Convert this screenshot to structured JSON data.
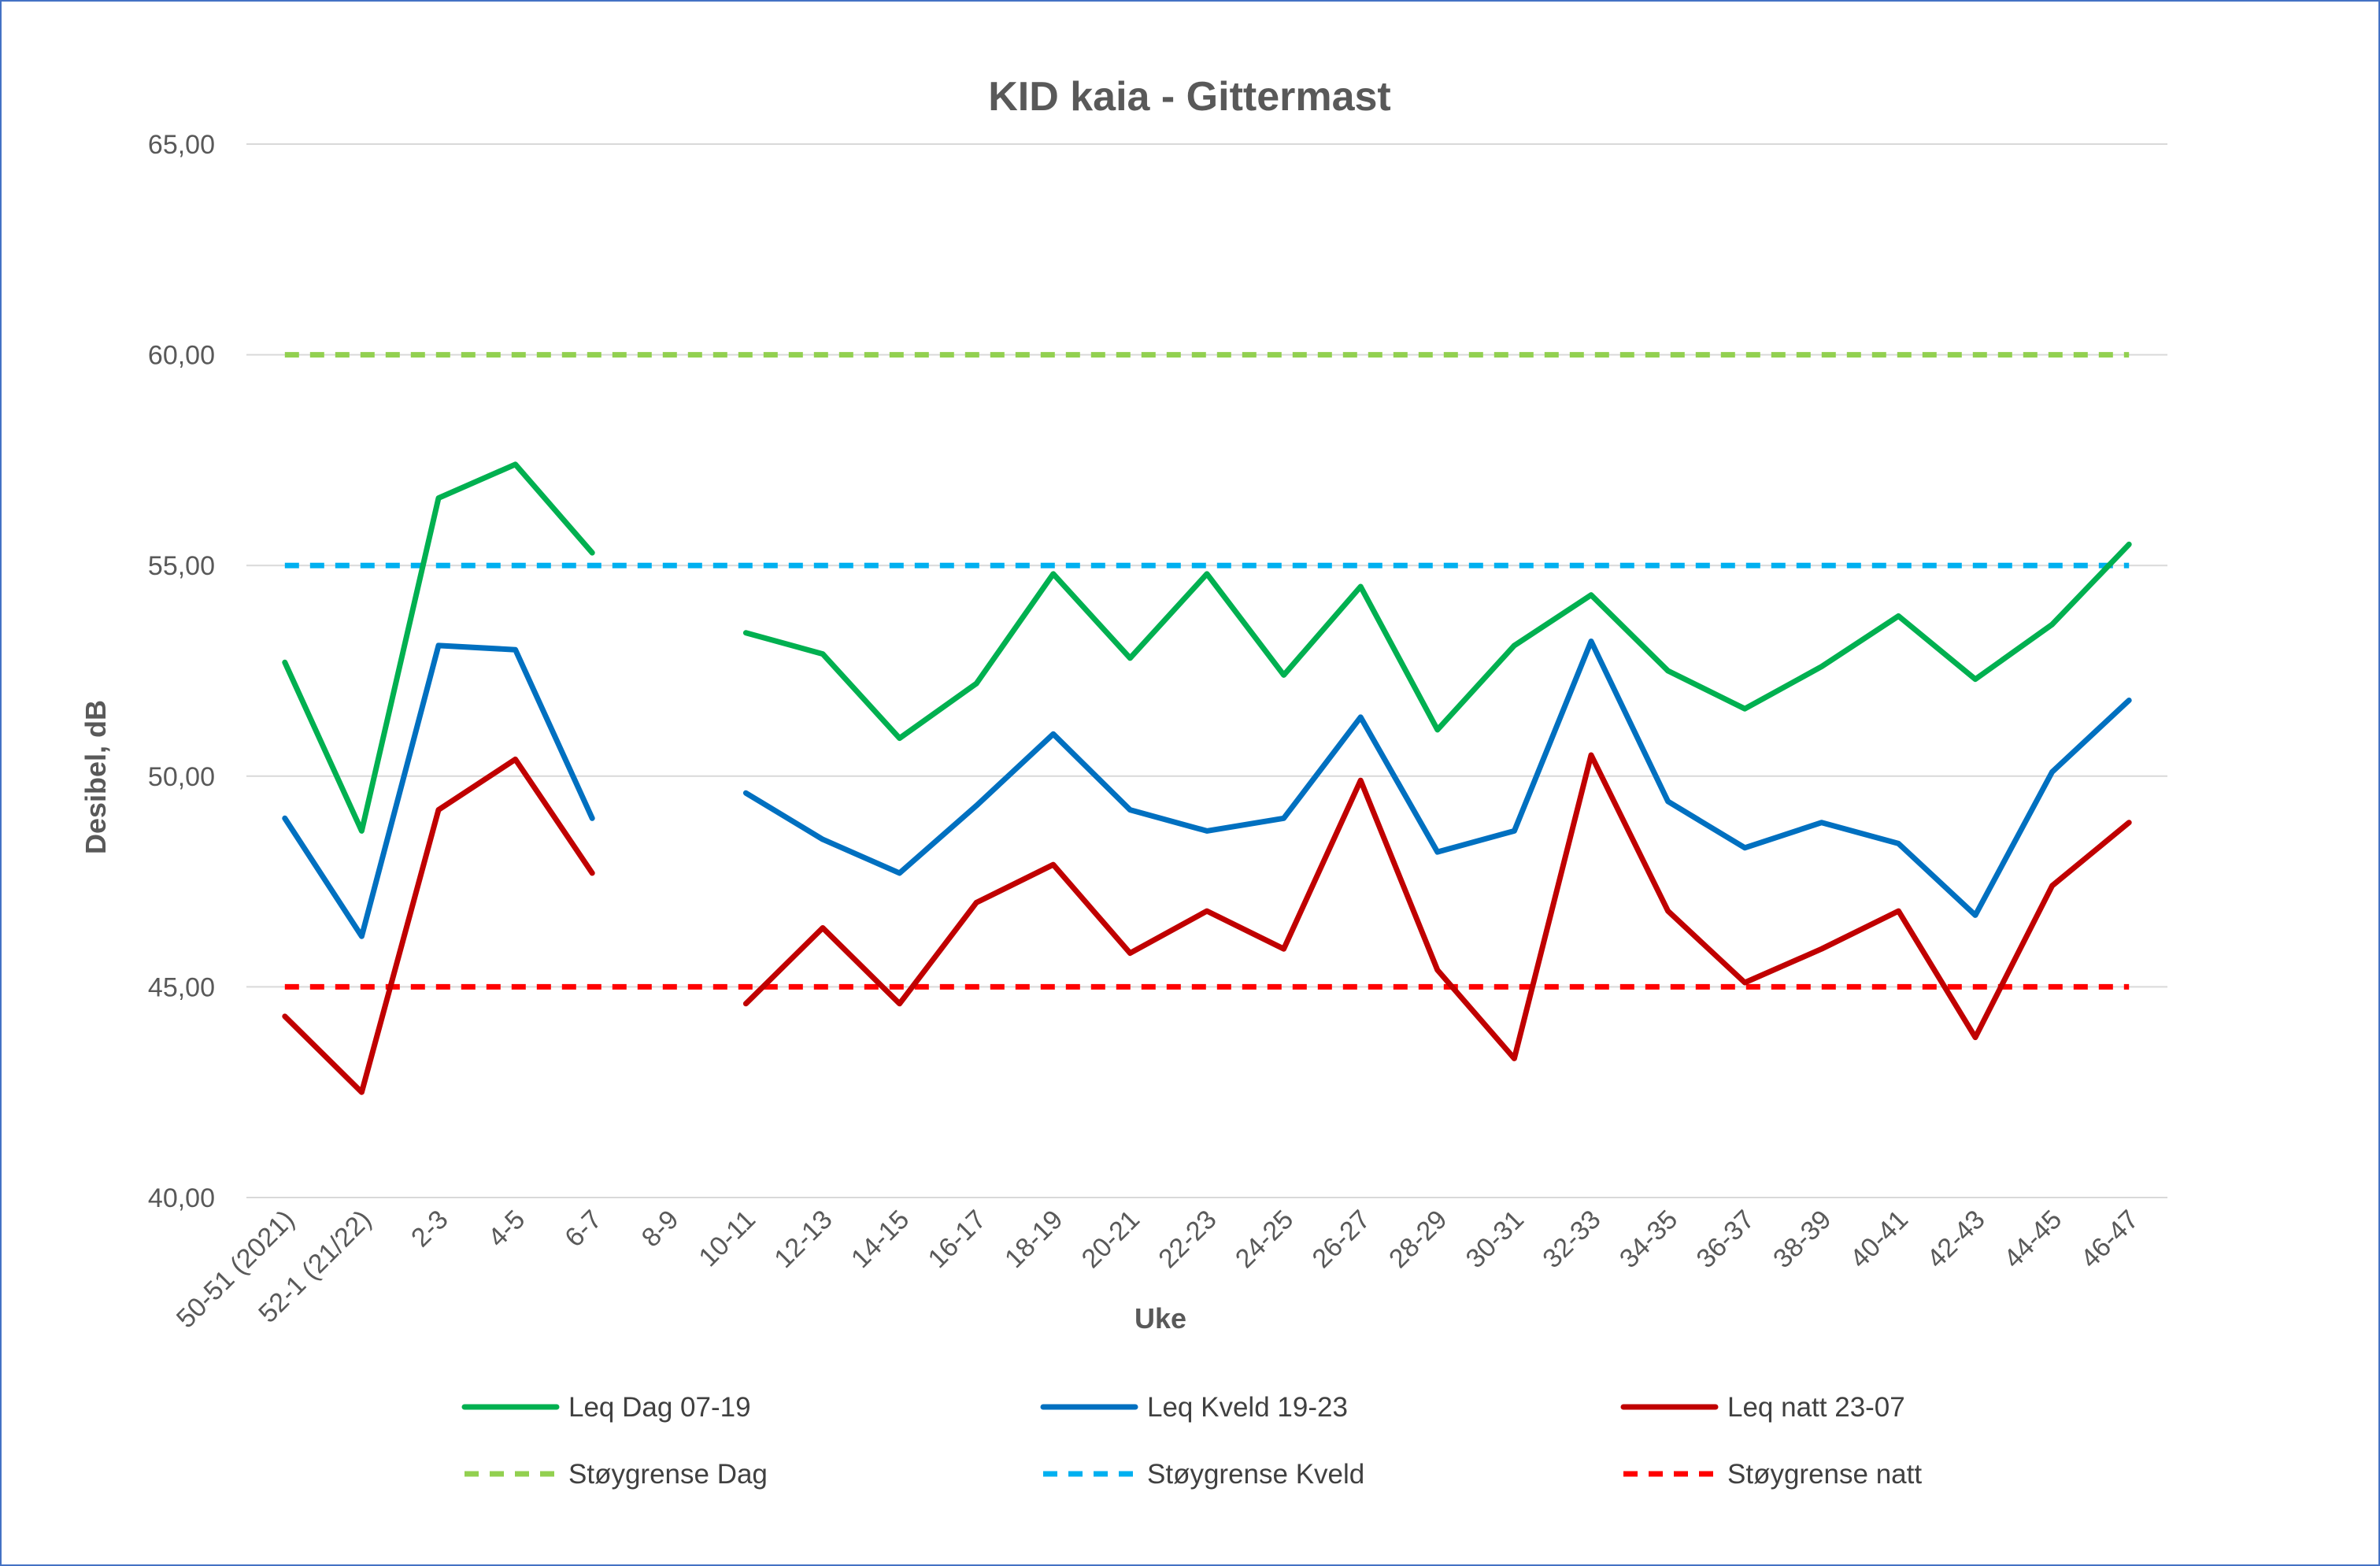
{
  "chart_data": {
    "type": "line",
    "title": "KID kaia - Gittermast",
    "xlabel": "Uke",
    "ylabel": "Desibel, dB",
    "ylim": [
      40,
      65
    ],
    "yticks": [
      "40,00",
      "45,00",
      "50,00",
      "55,00",
      "60,00",
      "65,00"
    ],
    "grid": true,
    "legend_position": "bottom",
    "categories": [
      "50-51 (2021)",
      "52-1 (21/22)",
      "2-3",
      "4-5",
      "6-7",
      "8-9",
      "10-11",
      "12-13",
      "14-15",
      "16-17",
      "18-19",
      "20-21",
      "22-23",
      "24-25",
      "26-27",
      "28-29",
      "30-31",
      "32-33",
      "34-35",
      "36-37",
      "38-39",
      "40-41",
      "42-43",
      "44-45",
      "46-47"
    ],
    "series": [
      {
        "name": "Leq Dag 07-19",
        "color": "#00b050",
        "dash": false,
        "values": [
          52.7,
          48.7,
          56.6,
          57.4,
          55.3,
          null,
          53.4,
          52.9,
          50.9,
          52.2,
          54.8,
          52.8,
          54.8,
          52.4,
          54.5,
          51.1,
          53.1,
          54.3,
          52.5,
          51.6,
          52.6,
          53.8,
          52.3,
          53.6,
          55.5
        ]
      },
      {
        "name": "Leq Kveld 19-23",
        "color": "#0070c0",
        "dash": false,
        "values": [
          49.0,
          46.2,
          53.1,
          53.0,
          49.0,
          null,
          49.6,
          48.5,
          47.7,
          49.3,
          51.0,
          49.2,
          48.7,
          49.0,
          51.4,
          48.2,
          48.7,
          53.2,
          49.4,
          48.3,
          48.9,
          48.4,
          46.7,
          50.1,
          51.8
        ]
      },
      {
        "name": "Leq natt 23-07",
        "color": "#c00000",
        "dash": false,
        "values": [
          44.3,
          42.5,
          49.2,
          50.4,
          47.7,
          null,
          44.6,
          46.4,
          44.6,
          47.0,
          47.9,
          45.8,
          46.8,
          45.9,
          49.9,
          45.4,
          43.3,
          50.5,
          46.8,
          45.1,
          45.9,
          46.8,
          43.8,
          47.4,
          48.9
        ]
      },
      {
        "name": "Støygrense Dag",
        "color": "#92d050",
        "dash": true,
        "values": [
          60,
          60,
          60,
          60,
          60,
          60,
          60,
          60,
          60,
          60,
          60,
          60,
          60,
          60,
          60,
          60,
          60,
          60,
          60,
          60,
          60,
          60,
          60,
          60,
          60
        ]
      },
      {
        "name": "Støygrense Kveld",
        "color": "#00b0f0",
        "dash": true,
        "values": [
          55,
          55,
          55,
          55,
          55,
          55,
          55,
          55,
          55,
          55,
          55,
          55,
          55,
          55,
          55,
          55,
          55,
          55,
          55,
          55,
          55,
          55,
          55,
          55,
          55
        ]
      },
      {
        "name": "Støygrense natt",
        "color": "#ff0000",
        "dash": true,
        "values": [
          45,
          45,
          45,
          45,
          45,
          45,
          45,
          45,
          45,
          45,
          45,
          45,
          45,
          45,
          45,
          45,
          45,
          45,
          45,
          45,
          45,
          45,
          45,
          45,
          45
        ]
      }
    ]
  }
}
